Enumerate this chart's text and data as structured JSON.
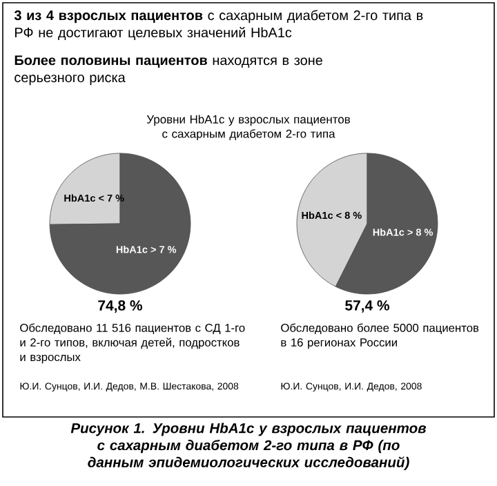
{
  "chart_data": [
    {
      "type": "pie",
      "title": "**3 из 4 взрослых пациентов** с сахарным диабетом 2-го типа в РФ не достигают целевых значений HbA1c",
      "subtitle": "**Более половины пациентов** находятся в зоне серьезного риска",
      "categories": [
        "HbA1c < 7 %",
        "HbA1c > 7 %"
      ],
      "values": [
        25.2,
        74.8
      ],
      "colors": [
        "#d4d4d4",
        "#575757"
      ],
      "value_labels": [
        null,
        "74,8 %"
      ],
      "annotations": [
        "Уровни HbA1c у взрослых пациентов с сахарным диабетом 2-го типа",
        "Обследовано 11 516 пациентов с СД 1-го и 2-го типов, включая детей, подростков и взрослых",
        "Ю.И. Сунцов, И.И. Дедов, М.В. Шестакова, 2008",
        "Рисунок 1. Уровни HbA1c у взрослых пациентов с сахарным диабетом 2-го типа в РФ (по данным эпидемиологических исследований)"
      ]
    },
    {
      "type": "pie",
      "categories": [
        "HbA1c < 8 %",
        "HbA1c > 8 %"
      ],
      "values": [
        42.6,
        57.4
      ],
      "colors": [
        "#d4d4d4",
        "#575757"
      ],
      "value_labels": [
        null,
        "57,4 %"
      ],
      "annotations": [
        "Обследовано более 5000 пациентов в 16 регионах России",
        "Ю.И. Сунцов, И.И. Дедов, 2008"
      ]
    }
  ]
}
